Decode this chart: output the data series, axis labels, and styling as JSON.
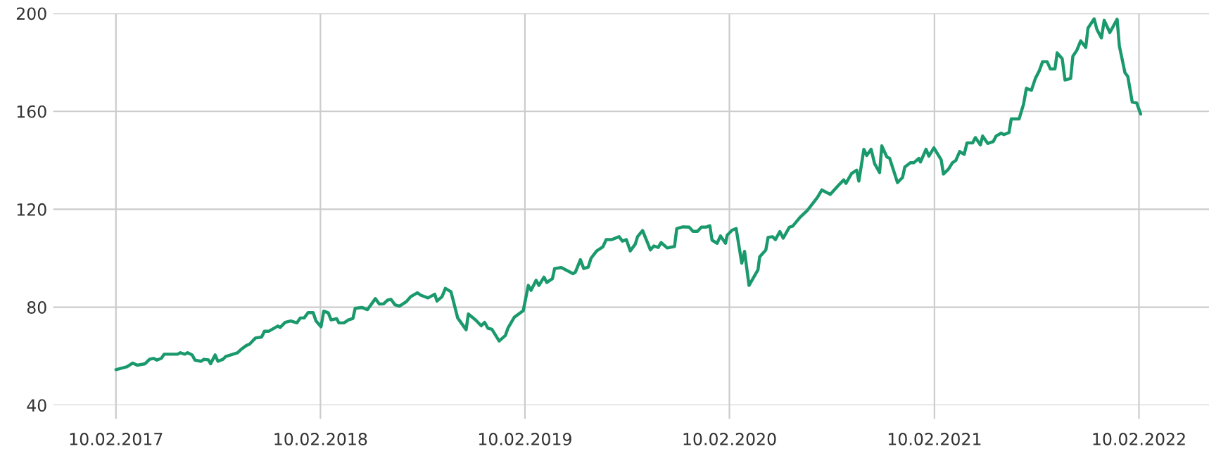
{
  "chart_data": {
    "type": "line",
    "x": [
      "2017-02-10",
      "2017-03-02",
      "2017-03-12",
      "2017-03-20",
      "2017-04-03",
      "2017-04-11",
      "2017-04-18",
      "2017-04-24",
      "2017-05-02",
      "2017-05-07",
      "2017-05-31",
      "2017-06-05",
      "2017-06-13",
      "2017-06-18",
      "2017-06-26",
      "2017-07-01",
      "2017-07-12",
      "2017-07-17",
      "2017-07-25",
      "2017-07-29",
      "2017-08-06",
      "2017-08-11",
      "2017-08-20",
      "2017-08-25",
      "2017-09-08",
      "2017-09-15",
      "2017-09-21",
      "2017-10-01",
      "2017-10-06",
      "2017-10-17",
      "2017-10-28",
      "2017-11-02",
      "2017-11-10",
      "2017-11-26",
      "2017-11-30",
      "2017-12-09",
      "2017-12-19",
      "2017-12-30",
      "2018-01-05",
      "2018-01-12",
      "2018-01-19",
      "2018-01-28",
      "2018-02-02",
      "2018-02-11",
      "2018-02-16",
      "2018-02-24",
      "2018-03-01",
      "2018-03-11",
      "2018-03-15",
      "2018-03-24",
      "2018-04-01",
      "2018-04-09",
      "2018-04-13",
      "2018-04-25",
      "2018-05-05",
      "2018-05-19",
      "2018-05-26",
      "2018-06-03",
      "2018-06-10",
      "2018-06-16",
      "2018-06-23",
      "2018-07-01",
      "2018-07-13",
      "2018-07-21",
      "2018-08-02",
      "2018-08-08",
      "2018-08-21",
      "2018-09-02",
      "2018-09-06",
      "2018-09-15",
      "2018-09-21",
      "2018-10-01",
      "2018-10-13",
      "2018-10-28",
      "2018-11-01",
      "2018-11-14",
      "2018-11-24",
      "2018-11-30",
      "2018-12-06",
      "2018-12-13",
      "2018-12-26",
      "2019-01-06",
      "2019-01-11",
      "2019-01-22",
      "2019-02-07",
      "2019-02-16",
      "2019-02-21",
      "2019-03-02",
      "2019-03-07",
      "2019-03-16",
      "2019-03-21",
      "2019-03-31",
      "2019-04-04",
      "2019-04-16",
      "2019-05-07",
      "2019-05-11",
      "2019-05-20",
      "2019-05-26",
      "2019-06-03",
      "2019-06-08",
      "2019-06-18",
      "2019-06-29",
      "2019-07-05",
      "2019-07-15",
      "2019-07-28",
      "2019-08-03",
      "2019-08-10",
      "2019-08-17",
      "2019-08-26",
      "2019-08-30",
      "2019-09-08",
      "2019-09-22",
      "2019-09-28",
      "2019-10-06",
      "2019-10-11",
      "2019-10-22",
      "2019-11-04",
      "2019-11-08",
      "2019-11-19",
      "2019-11-30",
      "2019-12-07",
      "2019-12-15",
      "2019-12-22",
      "2019-12-30",
      "2020-01-06",
      "2020-01-10",
      "2020-01-19",
      "2020-01-25",
      "2020-02-03",
      "2020-02-06",
      "2020-02-15",
      "2020-02-22",
      "2020-03-03",
      "2020-03-08",
      "2020-03-16",
      "2020-04-01",
      "2020-04-04",
      "2020-04-15",
      "2020-04-19",
      "2020-04-27",
      "2020-05-02",
      "2020-05-10",
      "2020-05-16",
      "2020-05-27",
      "2020-06-02",
      "2020-06-15",
      "2020-06-28",
      "2020-07-16",
      "2020-07-24",
      "2020-08-08",
      "2020-08-21",
      "2020-09-01",
      "2020-09-05",
      "2020-09-15",
      "2020-09-24",
      "2020-09-28",
      "2020-10-07",
      "2020-10-12",
      "2020-10-20",
      "2020-10-26",
      "2020-11-04",
      "2020-11-08",
      "2020-11-17",
      "2020-11-22",
      "2020-12-06",
      "2020-12-15",
      "2020-12-19",
      "2020-12-29",
      "2021-01-04",
      "2021-01-13",
      "2021-01-16",
      "2021-01-26",
      "2021-01-31",
      "2021-02-09",
      "2021-02-22",
      "2021-02-26",
      "2021-03-07",
      "2021-03-14",
      "2021-03-20",
      "2021-03-27",
      "2021-04-04",
      "2021-04-09",
      "2021-04-19",
      "2021-04-24",
      "2021-05-03",
      "2021-05-07",
      "2021-05-16",
      "2021-05-26",
      "2021-05-31",
      "2021-06-09",
      "2021-06-14",
      "2021-06-23",
      "2021-06-27",
      "2021-07-11",
      "2021-07-19",
      "2021-07-24",
      "2021-08-02",
      "2021-08-09",
      "2021-08-16",
      "2021-08-22",
      "2021-08-30",
      "2021-09-05",
      "2021-09-13",
      "2021-09-17",
      "2021-09-26",
      "2021-10-01",
      "2021-10-11",
      "2021-10-15",
      "2021-10-22",
      "2021-10-29",
      "2021-11-07",
      "2021-11-11",
      "2021-11-22",
      "2021-11-27",
      "2021-12-05",
      "2021-12-10",
      "2021-12-20",
      "2022-01-02",
      "2022-01-06",
      "2022-01-16",
      "2022-01-21",
      "2022-01-29",
      "2022-02-06",
      "2022-02-13"
    ],
    "series": [
      {
        "color": "#1a9a6c",
        "values": [
          54.5,
          55.7,
          57.2,
          56.3,
          56.9,
          58.7,
          59.1,
          58.4,
          59.1,
          60.8,
          60.8,
          61.4,
          60.8,
          61.4,
          60.5,
          58.4,
          57.9,
          58.7,
          58.5,
          56.9,
          60.5,
          57.9,
          58.7,
          59.9,
          60.9,
          61.4,
          62.7,
          64.4,
          64.8,
          67.4,
          67.8,
          70.2,
          70.2,
          72.3,
          71.7,
          73.8,
          74.4,
          73.6,
          75.6,
          75.6,
          77.8,
          77.8,
          74.4,
          72.0,
          78.4,
          77.7,
          74.8,
          75.3,
          73.6,
          73.6,
          74.8,
          75.4,
          79.5,
          79.9,
          79.0,
          83.5,
          81.3,
          81.4,
          82.9,
          83.2,
          81.0,
          80.4,
          82.2,
          84.3,
          85.9,
          84.9,
          83.8,
          85.3,
          82.5,
          84.3,
          87.7,
          86.3,
          75.6,
          70.8,
          77.2,
          74.8,
          72.4,
          73.8,
          71.4,
          71.0,
          66.2,
          68.4,
          71.6,
          75.9,
          78.6,
          88.9,
          86.9,
          91.0,
          88.9,
          92.3,
          90.1,
          91.6,
          95.8,
          96.2,
          93.7,
          94.3,
          99.4,
          95.8,
          96.4,
          100.0,
          103.0,
          104.6,
          107.6,
          107.6,
          108.8,
          107.0,
          107.6,
          103.0,
          105.8,
          108.8,
          111.3,
          103.4,
          105.0,
          104.4,
          106.4,
          104.2,
          104.8,
          112.1,
          112.8,
          112.7,
          111.0,
          111.0,
          112.7,
          112.7,
          113.3,
          107.4,
          106.1,
          109.1,
          106.1,
          109.4,
          111.5,
          112.1,
          98.0,
          102.8,
          88.9,
          95.3,
          100.6,
          103.4,
          108.5,
          108.8,
          107.6,
          110.9,
          108.2,
          112.7,
          113.1,
          116.7,
          119.5,
          124.8,
          127.9,
          126.1,
          129.4,
          132.0,
          130.6,
          134.6,
          136.0,
          131.5,
          144.5,
          142.0,
          144.5,
          138.7,
          135.0,
          145.9,
          141.4,
          140.8,
          130.9,
          133.0,
          137.2,
          139.0,
          139.0,
          140.8,
          139.3,
          144.5,
          141.7,
          145.1,
          140.2,
          134.4,
          136.4,
          139.0,
          139.9,
          143.6,
          142.4,
          147.1,
          147.1,
          149.3,
          146.3,
          149.9,
          146.9,
          147.7,
          149.9,
          151.1,
          150.5,
          151.3,
          156.9,
          156.9,
          162.9,
          169.4,
          168.6,
          173.4,
          176.5,
          180.3,
          180.3,
          177.3,
          177.3,
          183.9,
          181.5,
          172.8,
          173.4,
          182.5,
          184.9,
          188.8,
          186.1,
          194.0,
          197.8,
          193.4,
          190.0,
          197.2,
          192.2,
          197.6,
          186.7,
          175.8,
          174.3,
          163.8,
          163.4,
          158.9
        ]
      }
    ],
    "xlim": [
      "2016-10-21",
      "2022-06-15"
    ],
    "xticks": [
      {
        "value": "2017-02-10",
        "label": "10.02.2017"
      },
      {
        "value": "2018-02-10",
        "label": "10.02.2018"
      },
      {
        "value": "2019-02-10",
        "label": "10.02.2019"
      },
      {
        "value": "2020-02-10",
        "label": "10.02.2020"
      },
      {
        "value": "2021-02-10",
        "label": "10.02.2021"
      },
      {
        "value": "2022-02-10",
        "label": "10.02.2022"
      }
    ],
    "ylim": [
      40,
      200
    ],
    "yticks": [
      40,
      80,
      120,
      160,
      200
    ],
    "grid": true,
    "line_style": "solid"
  }
}
